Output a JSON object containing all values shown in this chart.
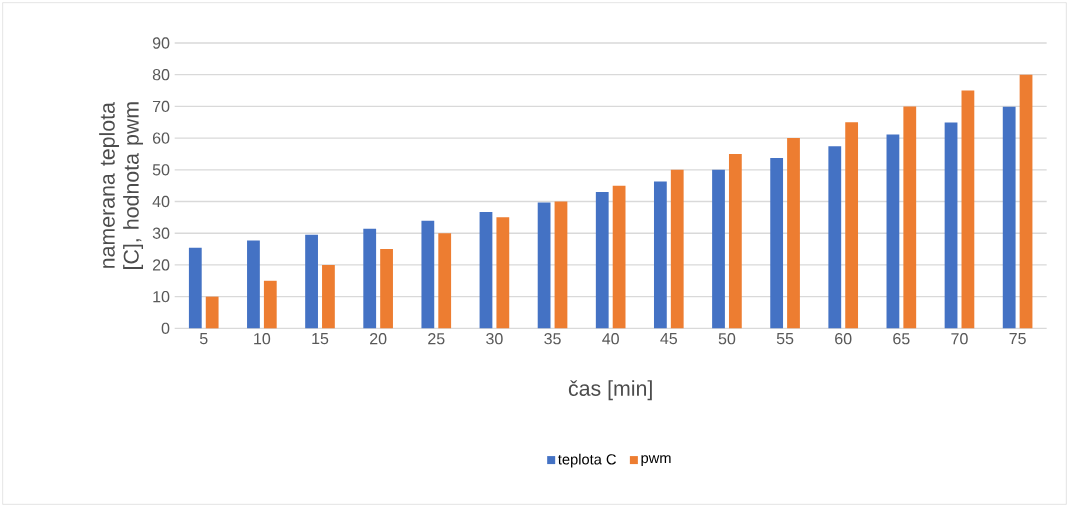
{
  "chart_data": {
    "type": "bar",
    "xlabel": "čas [min]",
    "ylabel": "namerana teplota [C], hodnota pwm",
    "categories": [
      "5",
      "10",
      "15",
      "20",
      "25",
      "30",
      "35",
      "40",
      "45",
      "50",
      "55",
      "60",
      "65",
      "70",
      "75"
    ],
    "series": [
      {
        "name": "teplota C",
        "color": "#4472c4",
        "values": [
          25.4,
          27.7,
          29.5,
          31.4,
          33.9,
          36.7,
          39.7,
          43.0,
          46.3,
          50.0,
          53.7,
          57.4,
          61.1,
          64.9,
          69.9
        ]
      },
      {
        "name": "pwm",
        "color": "#ed7d31",
        "values": [
          10,
          15,
          20,
          25,
          30,
          35,
          40,
          45,
          50,
          55,
          60,
          65,
          70,
          75,
          80
        ]
      }
    ],
    "ylim": [
      0,
      90
    ],
    "yticks": [
      0,
      10,
      20,
      30,
      40,
      50,
      60,
      70,
      80,
      90
    ],
    "grid": "y",
    "legend": "bottom"
  }
}
